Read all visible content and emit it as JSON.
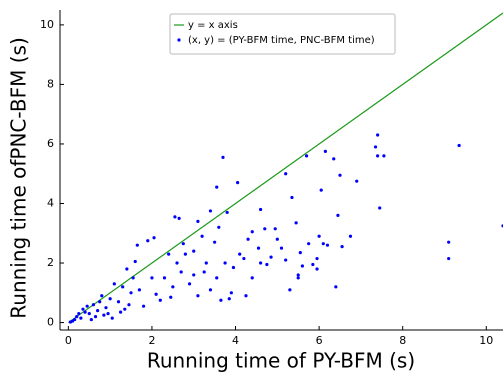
{
  "chart_data": {
    "type": "scatter",
    "xlabel": "Running time of PY-BFM (s)",
    "ylabel": "Running time ofPNC-BFM (s)",
    "xlim": [
      -0.2,
      10.4
    ],
    "ylim": [
      -0.25,
      10.5
    ],
    "xticks": [
      0,
      2,
      4,
      6,
      8,
      10
    ],
    "yticks": [
      0,
      2,
      4,
      6,
      8,
      10
    ],
    "grid": false,
    "legend": "upper center",
    "series": [
      {
        "name": "y = x axis",
        "style": "line",
        "color": "#1a9a1a",
        "x": [
          0,
          10.4
        ],
        "values": [
          0,
          10.4
        ]
      },
      {
        "name": "(x, y) = (PY-BFM time, PNC-BFM time)",
        "style": "points",
        "color": "#0000ff",
        "x": [
          10.4,
          9.35,
          9.1,
          9.1,
          7.4,
          7.35,
          7.55,
          7.4,
          7.45,
          6.9,
          6.5,
          6.35,
          6.15,
          5.7,
          5.35,
          5.2,
          3.7,
          4.05,
          3.55,
          6.75,
          6.05,
          6.45,
          6.2,
          6.55,
          5.6,
          5.5,
          5.5,
          5.75,
          5.95,
          5.85,
          5.55,
          4.6,
          4.75,
          4.4,
          4.55,
          4.6,
          4.4,
          4.7,
          4.95,
          5.2,
          5.0,
          4.85,
          3.95,
          4.1,
          3.9,
          3.65,
          3.85,
          3.4,
          3.1,
          3.0,
          3.3,
          3.5,
          2.8,
          2.7,
          2.5,
          2.45,
          2.2,
          2.0,
          1.9,
          2.05,
          1.65,
          1.6,
          1.4,
          1.3,
          1.2,
          1.0,
          0.9,
          0.7,
          0.5,
          0.3,
          0.15,
          0.1,
          0.4,
          0.6,
          0.8,
          1.1,
          1.5,
          1.7,
          2.3,
          2.6,
          2.9,
          3.2,
          3.6,
          3.8,
          2.55,
          2.65,
          3.1,
          3.4,
          3.25,
          1.8,
          2.1,
          1.35,
          0.95,
          0.65,
          0.25,
          0.55,
          0.85,
          1.05,
          0.45,
          0.75,
          0.35,
          0.2,
          0.05,
          1.25,
          1.45,
          1.55,
          2.4,
          2.75,
          3.0,
          3.55,
          3.75,
          4.2,
          4.25,
          4.3,
          5.1,
          5.3,
          5.45,
          6.0,
          6.1,
          5.95,
          6.4
        ],
        "values": [
          3.25,
          5.95,
          2.7,
          2.15,
          6.3,
          5.9,
          5.6,
          5.6,
          3.85,
          4.75,
          4.95,
          5.5,
          5.75,
          5.6,
          4.2,
          5.0,
          5.55,
          4.7,
          4.55,
          2.9,
          4.45,
          3.6,
          2.6,
          2.55,
          1.9,
          1.5,
          1.6,
          2.65,
          2.15,
          1.95,
          2.35,
          2.0,
          1.95,
          1.5,
          2.5,
          3.8,
          3.05,
          3.15,
          3.15,
          2.1,
          2.8,
          2.2,
          1.85,
          2.3,
          1.0,
          0.75,
          0.8,
          1.1,
          0.9,
          1.6,
          2.0,
          2.7,
          2.3,
          1.7,
          1.2,
          0.85,
          0.75,
          1.5,
          2.75,
          2.85,
          2.6,
          2.05,
          1.8,
          1.2,
          0.7,
          0.8,
          0.5,
          0.4,
          0.3,
          0.15,
          0.1,
          0.05,
          0.35,
          0.6,
          0.9,
          1.3,
          1.0,
          1.1,
          1.5,
          2.0,
          1.3,
          2.9,
          3.2,
          3.7,
          3.55,
          3.5,
          3.4,
          3.75,
          1.7,
          0.55,
          0.95,
          0.45,
          0.3,
          0.2,
          0.3,
          0.1,
          0.25,
          0.15,
          0.55,
          0.7,
          0.45,
          0.2,
          0.02,
          0.35,
          0.6,
          1.5,
          2.3,
          2.65,
          2.4,
          1.5,
          2.0,
          2.15,
          0.9,
          2.8,
          2.5,
          1.1,
          3.35,
          2.9,
          2.65,
          1.8,
          1.2
        ]
      }
    ]
  }
}
